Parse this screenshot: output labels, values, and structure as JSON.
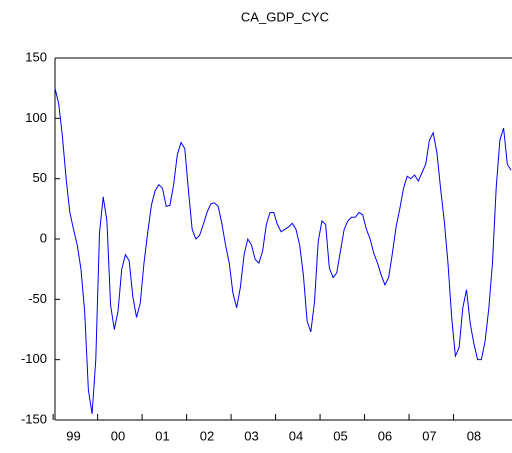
{
  "chart_data": {
    "type": "line",
    "title": "CA_GDP_CYC",
    "categories": [
      null,
      null,
      null,
      null,
      null,
      "99",
      null,
      null,
      null,
      null,
      null,
      null,
      null,
      null,
      null,
      null,
      null,
      "00",
      null,
      null,
      null,
      null,
      null,
      null,
      null,
      null,
      null,
      null,
      null,
      "01",
      null,
      null,
      null,
      null,
      null,
      null,
      null,
      null,
      null,
      null,
      null,
      "02",
      null,
      null,
      null,
      null,
      null,
      null,
      null,
      null,
      null,
      null,
      null,
      "03",
      null,
      null,
      null,
      null,
      null,
      null,
      null,
      null,
      null,
      null,
      null,
      "04",
      null,
      null,
      null,
      null,
      null,
      null,
      null,
      null,
      null,
      null,
      null,
      "05",
      null,
      null,
      null,
      null,
      null,
      null,
      null,
      null,
      null,
      null,
      null,
      "06",
      null,
      null,
      null,
      null,
      null,
      null,
      null,
      null,
      null,
      null,
      null,
      "07",
      null,
      null,
      null,
      null,
      null,
      null,
      null,
      null,
      null,
      null,
      null,
      "08",
      null,
      null,
      null,
      null,
      null,
      null,
      null,
      null,
      null,
      null
    ],
    "values": [
      125,
      112,
      85,
      50,
      22,
      8,
      -5,
      -25,
      -60,
      -125,
      -145,
      -100,
      5,
      35,
      15,
      -55,
      -75,
      -60,
      -25,
      -13,
      -18,
      -48,
      -65,
      -53,
      -20,
      5,
      28,
      40,
      45,
      42,
      27,
      28,
      45,
      70,
      80,
      75,
      40,
      8,
      0,
      3,
      12,
      22,
      29,
      30,
      27,
      13,
      -5,
      -20,
      -45,
      -57,
      -40,
      -13,
      0,
      -5,
      -17,
      -20,
      -10,
      12,
      22,
      22,
      12,
      6,
      8,
      10,
      13,
      8,
      -5,
      -30,
      -68,
      -77,
      -52,
      -2,
      15,
      12,
      -24,
      -32,
      -28,
      -10,
      8,
      15,
      18,
      18,
      22,
      20,
      8,
      0,
      -12,
      -20,
      -30,
      -38,
      -32,
      -12,
      10,
      25,
      42,
      52,
      50,
      53,
      48,
      55,
      62,
      82,
      88,
      72,
      42,
      15,
      -20,
      -65,
      -97,
      -90,
      -57,
      -42,
      -70,
      -87,
      -100,
      -100,
      -85,
      -58,
      -20,
      42,
      82,
      92,
      62,
      57
    ],
    "color": "#0000ff",
    "ylim": [
      -150,
      150
    ],
    "yticks": [
      -150,
      -100,
      -50,
      0,
      50,
      100,
      150
    ]
  }
}
